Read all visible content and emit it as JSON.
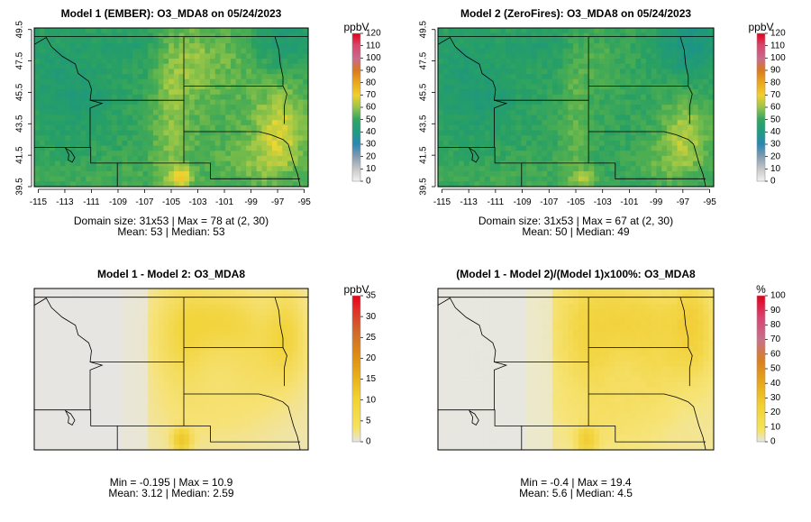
{
  "chart_data": [
    {
      "type": "heatmap",
      "title": "Model 1 (EMBER): O3_MDA8 on 05/24/2023",
      "units": "ppbV",
      "xlim": [
        -115.3,
        -94.7
      ],
      "ylim": [
        39.5,
        49.6
      ],
      "x_ticks": [
        -115,
        -113,
        -111,
        -109,
        -107,
        -105,
        -103,
        -101,
        -99,
        -97,
        -95
      ],
      "y_ticks": [
        39.5,
        41.5,
        43.5,
        45.5,
        47.5,
        49.5
      ],
      "colorbar": {
        "min": 0,
        "max": 120,
        "ticks": [
          0,
          10,
          20,
          30,
          40,
          50,
          60,
          70,
          80,
          90,
          100,
          110,
          120
        ]
      },
      "domain_line": "Domain size: 31x53 | Max = 78 at (2, 30)",
      "stats_line": "Mean: 53 |  Median: 53",
      "field": "model1"
    },
    {
      "type": "heatmap",
      "title": "Model 2 (ZeroFires): O3_MDA8 on 05/24/2023",
      "units": "ppbV",
      "xlim": [
        -115.3,
        -94.7
      ],
      "ylim": [
        39.5,
        49.6
      ],
      "x_ticks": [
        -115,
        -113,
        -111,
        -109,
        -107,
        -105,
        -103,
        -101,
        -99,
        -97,
        -95
      ],
      "y_ticks": [
        39.5,
        41.5,
        43.5,
        45.5,
        47.5,
        49.5
      ],
      "colorbar": {
        "min": 0,
        "max": 120,
        "ticks": [
          0,
          10,
          20,
          30,
          40,
          50,
          60,
          70,
          80,
          90,
          100,
          110,
          120
        ]
      },
      "domain_line": "Domain size: 31x53 | Max = 67 at (2, 30)",
      "stats_line": "Mean: 50 |  Median: 49",
      "field": "model2"
    },
    {
      "type": "heatmap",
      "title": "Model 1 - Model 2: O3_MDA8",
      "units": "ppbV",
      "colorbar": {
        "min": 0,
        "max": 35,
        "ticks": [
          0,
          5,
          10,
          15,
          20,
          25,
          30,
          35
        ]
      },
      "min_max_line": "Min = -0.195 | Max = 10.9",
      "stats_line": "Mean: 3.12 |  Median: 2.59",
      "field": "diff"
    },
    {
      "type": "heatmap",
      "title": "(Model 1 - Model 2)/(Model 1)x100%: O3_MDA8",
      "units": "%",
      "colorbar": {
        "min": 0,
        "max": 100,
        "ticks": [
          0,
          10,
          20,
          30,
          40,
          50,
          60,
          70,
          80,
          90,
          100
        ]
      },
      "min_max_line": "Min = -0.4 | Max = 19.4",
      "stats_line": "Mean: 5.6 |  Median: 4.5",
      "field": "pct"
    }
  ]
}
